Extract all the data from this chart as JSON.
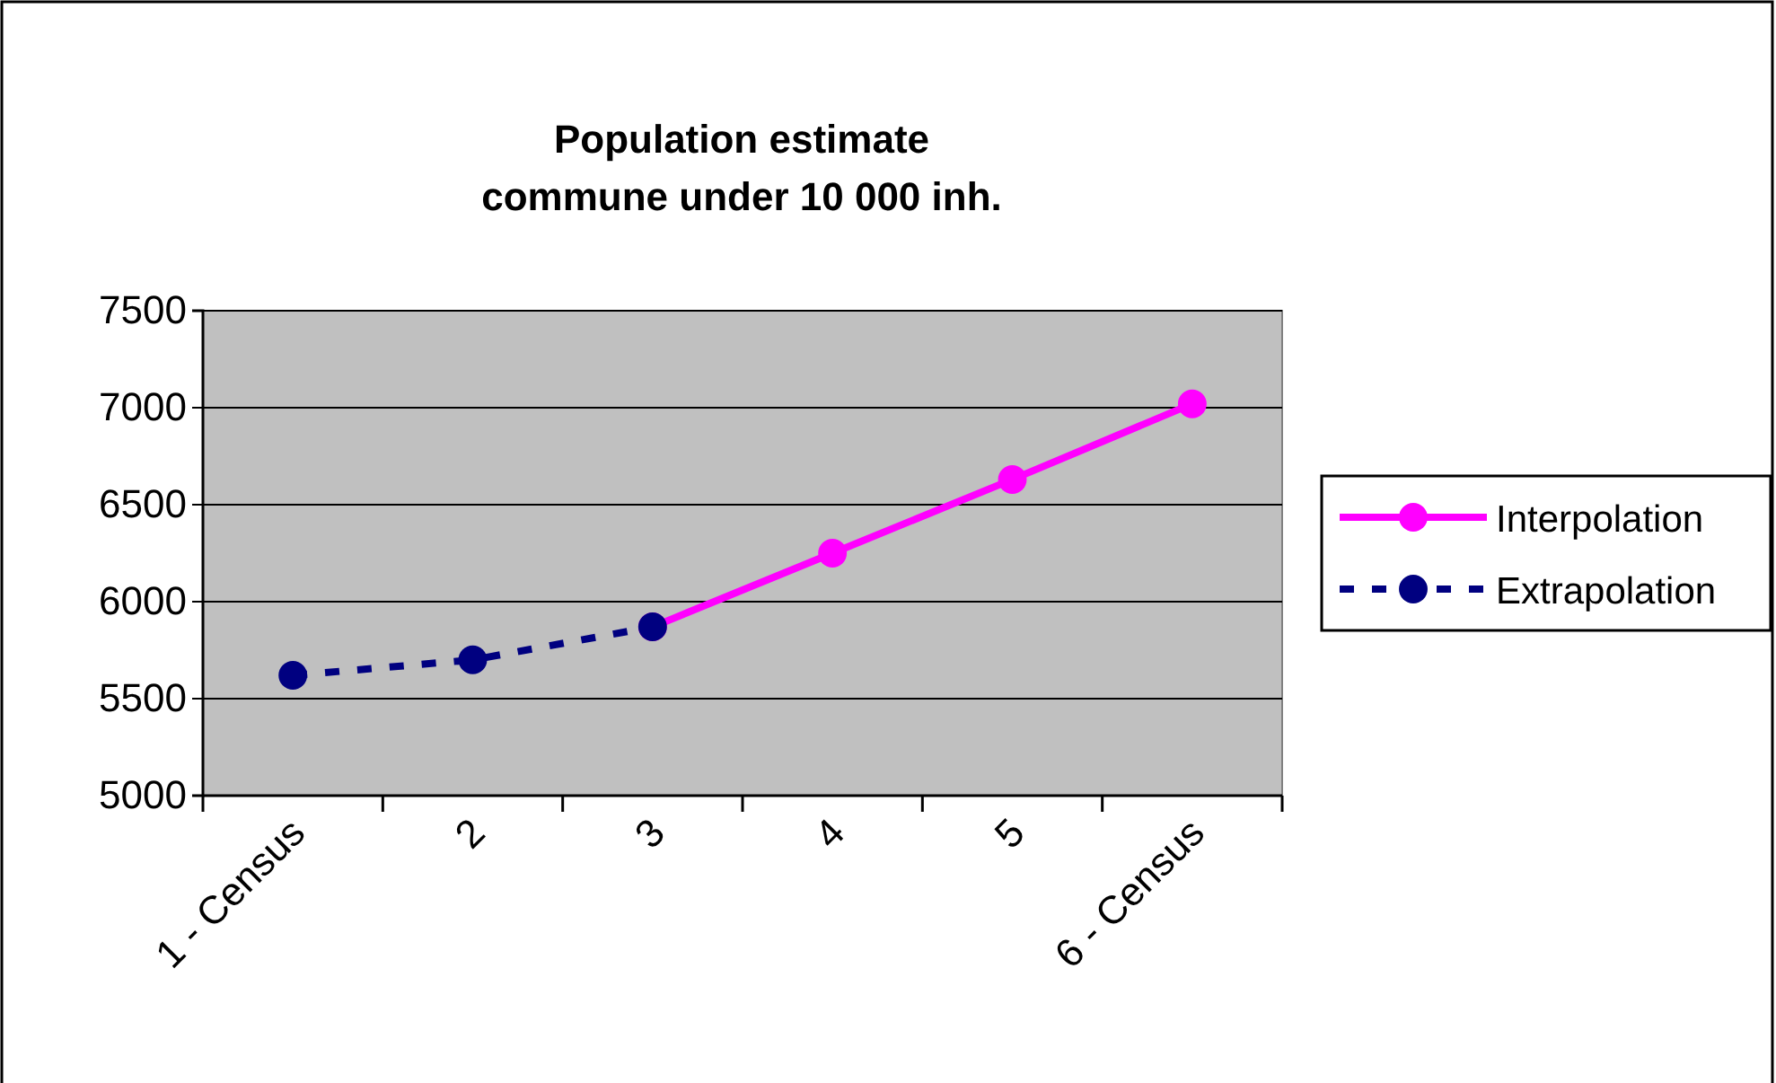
{
  "chart_data": {
    "type": "line",
    "title": "Population estimate\ncommune under 10 000 inh.",
    "categories": [
      "1 - Census",
      "2",
      "3",
      "4",
      "5",
      "6 - Census"
    ],
    "series": [
      {
        "name": "Interpolation",
        "color": "#ff00ff",
        "values": [
          null,
          null,
          5870,
          6250,
          6630,
          7020
        ],
        "line_style": "solid"
      },
      {
        "name": "Extrapolation",
        "color": "#000080",
        "values": [
          5620,
          5700,
          5870,
          null,
          null,
          null
        ],
        "line_style": "dashed"
      }
    ],
    "ylim": [
      5000,
      7500
    ],
    "yticks": [
      5000,
      5500,
      6000,
      6500,
      7000,
      7500
    ],
    "grid": "y",
    "legend": "right",
    "marker": "circle"
  }
}
